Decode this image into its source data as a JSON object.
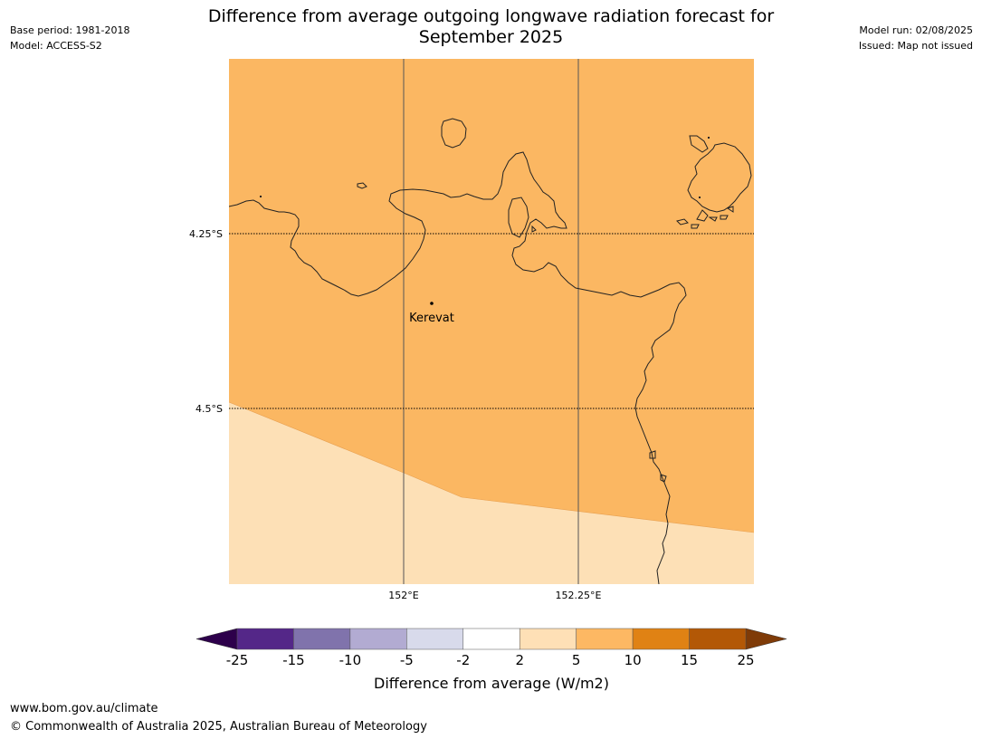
{
  "header": {
    "base_period": "Base period: 1981-2018",
    "model": "Model: ACCESS-S2",
    "model_run": "Model run: 02/08/2025",
    "issued": "Issued: Map not issued",
    "title_line1": "Difference from average outgoing longwave radiation forecast for",
    "title_line2": "September 2025"
  },
  "map": {
    "place_label": "Kerevat",
    "lat_labels": [
      "4.25°S",
      "4.5°S"
    ],
    "lon_labels": [
      "152°E",
      "152.25°E"
    ],
    "fill_colors": {
      "upper_band": "#fbb762",
      "lower_band": "#fde0b6",
      "coastline": "#222222"
    },
    "bands": [
      {
        "range": "5 to 10",
        "color": "#fbb762"
      },
      {
        "range": "2 to 5",
        "color": "#fde0b6"
      }
    ]
  },
  "colorbar": {
    "label": "Difference from average (W/m2)",
    "ticks": [
      "-25",
      "-15",
      "-10",
      "-5",
      "-2",
      "2",
      "5",
      "10",
      "15",
      "25"
    ],
    "segments": [
      "#542788",
      "#8073ac",
      "#b2abd2",
      "#d8daeb",
      "#ffffff",
      "#fee0b6",
      "#fdb863",
      "#e08214",
      "#b35806"
    ],
    "under_color": "#2d004b",
    "over_color": "#7f3b08"
  },
  "footer": {
    "url": "www.bom.gov.au/climate",
    "copyright": "© Commonwealth of Australia 2025, Australian Bureau of Meteorology"
  }
}
